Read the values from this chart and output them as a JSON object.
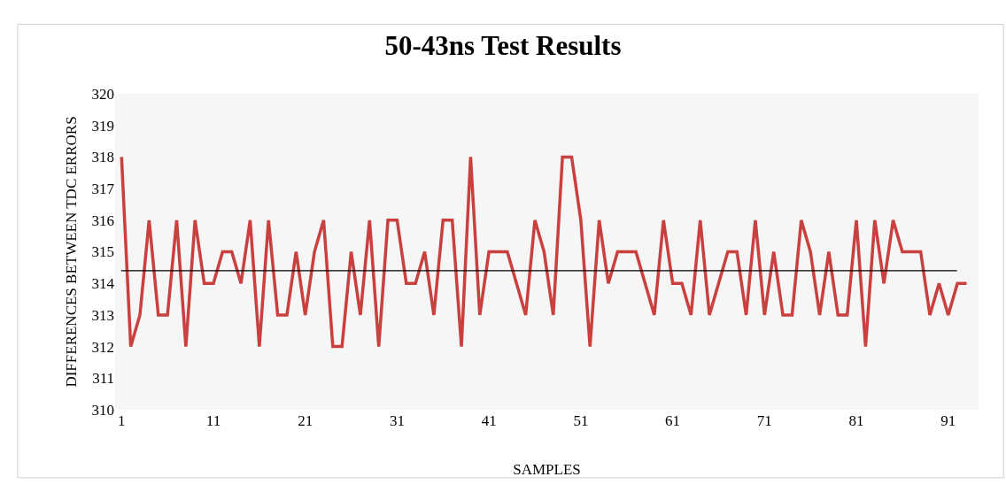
{
  "chart_data": {
    "type": "line",
    "title": "50-43ns Test Results",
    "xlabel": "SAMPLES",
    "ylabel": "DIFFERENCES BETWEEN TDC ERRORS",
    "x": [
      1,
      2,
      3,
      4,
      5,
      6,
      7,
      8,
      9,
      10,
      11,
      12,
      13,
      14,
      15,
      16,
      17,
      18,
      19,
      20,
      21,
      22,
      23,
      24,
      25,
      26,
      27,
      28,
      29,
      30,
      31,
      32,
      33,
      34,
      35,
      36,
      37,
      38,
      39,
      40,
      41,
      42,
      43,
      44,
      45,
      46,
      47,
      48,
      49,
      50,
      51,
      52,
      53,
      54,
      55,
      56,
      57,
      58,
      59,
      60,
      61,
      62,
      63,
      64,
      65,
      66,
      67,
      68,
      69,
      70,
      71,
      72,
      73,
      74,
      75,
      76,
      77,
      78,
      79,
      80,
      81,
      82,
      83,
      84,
      85,
      86,
      87,
      88,
      89,
      90,
      91,
      92,
      93
    ],
    "series": [
      {
        "color": "#c9403f",
        "values": [
          318,
          312,
          313,
          316,
          313,
          313,
          316,
          312,
          316,
          314,
          314,
          315,
          315,
          314,
          316,
          312,
          316,
          313,
          313,
          315,
          313,
          315,
          316,
          312,
          312,
          315,
          313,
          316,
          312,
          316,
          316,
          314,
          314,
          315,
          313,
          316,
          316,
          312,
          318,
          313,
          315,
          315,
          315,
          314,
          313,
          316,
          315,
          313,
          318,
          318,
          316,
          312,
          316,
          314,
          315,
          315,
          315,
          314,
          313,
          316,
          314,
          314,
          313,
          316,
          313,
          314,
          315,
          315,
          313,
          316,
          313,
          315,
          313,
          313,
          316,
          315,
          313,
          315,
          313,
          313,
          316,
          312,
          316,
          314,
          316,
          315,
          315,
          315,
          313,
          314,
          313,
          314,
          314
        ]
      }
    ],
    "xlim": [
      0.3,
      94.3
    ],
    "xticks": [
      1,
      11,
      21,
      31,
      41,
      51,
      61,
      71,
      81,
      91
    ],
    "ylim": [
      310,
      320
    ],
    "yticks": [
      310,
      311,
      312,
      313,
      314,
      315,
      316,
      317,
      318,
      319,
      320
    ],
    "ref_lines": [
      {
        "axis": "y",
        "value": 314.4,
        "color": "#000000"
      }
    ],
    "grid": false,
    "marker": "none",
    "line_style": "solid"
  }
}
